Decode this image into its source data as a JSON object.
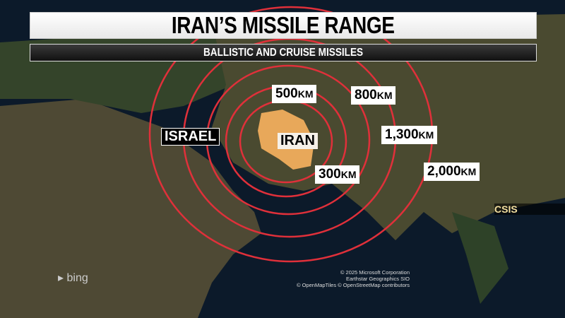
{
  "header": {
    "title": "IRAN’S MISSILE RANGE",
    "subtitle": "BALLISTIC AND CRUISE MISSILES"
  },
  "colors": {
    "ring": "#e0303a",
    "iran_fill": "#e8a85a",
    "land": "#3a4a2c",
    "sea": "#0c1a2a"
  },
  "ranges": [
    {
      "value": "300",
      "unit": "KM"
    },
    {
      "value": "500",
      "unit": "KM"
    },
    {
      "value": "800",
      "unit": "KM"
    },
    {
      "value": "1,300",
      "unit": "KM"
    },
    {
      "value": "2,000",
      "unit": "KM"
    }
  ],
  "places": {
    "israel": "ISRAEL",
    "iran": "IRAN"
  },
  "source": "CSIS",
  "brand": "bing",
  "credits": [
    "© 2025 Microsoft Corporation",
    "Earthstar Geographics SIO",
    "© OpenMapTiles © OpenStreetMap contributors"
  ]
}
